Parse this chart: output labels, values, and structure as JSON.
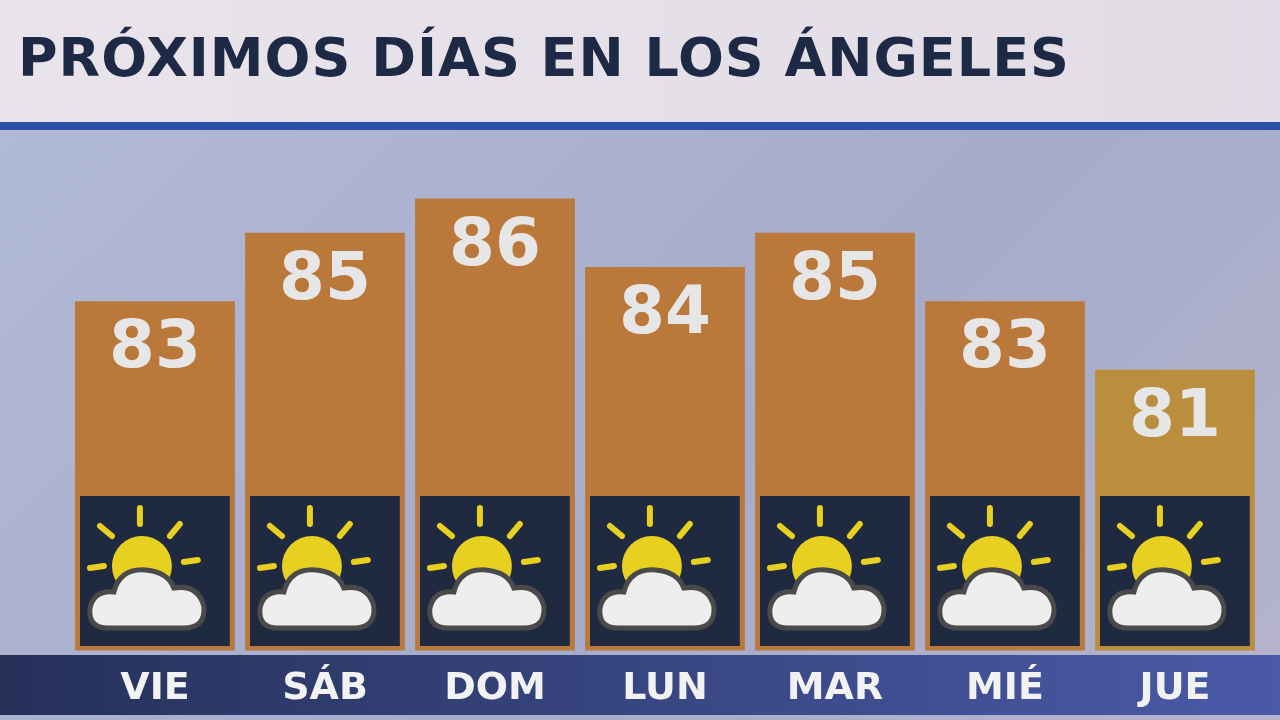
{
  "chart_data": {
    "type": "bar",
    "title": "PRÓXIMOS DÍAS EN LOS ÁNGELES",
    "categories": [
      "VIE",
      "SÁB",
      "DOM",
      "LUN",
      "MAR",
      "MIÉ",
      "JUE"
    ],
    "values": [
      83,
      85,
      86,
      84,
      85,
      83,
      81
    ],
    "colors": [
      "#bb783b",
      "#bb783b",
      "#bb783b",
      "#bb783b",
      "#bb783b",
      "#bb783b",
      "#bb8e3e"
    ],
    "ylim": [
      72.8,
      88
    ],
    "data_labels": true
  }
}
